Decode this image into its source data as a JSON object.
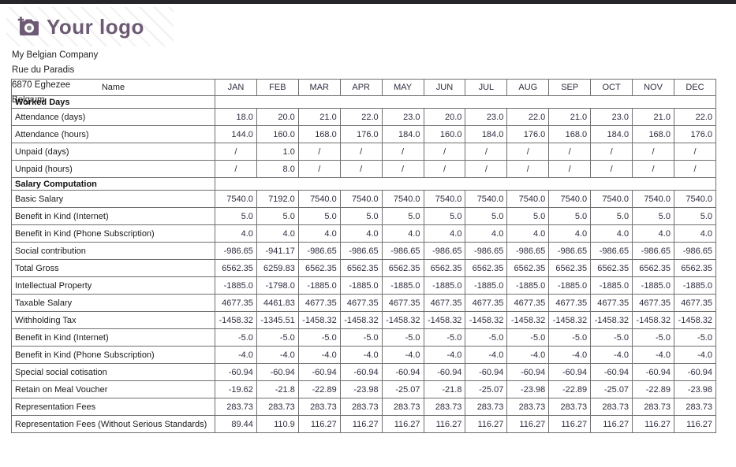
{
  "logo": {
    "text": "Your logo",
    "color": "#6d5a73"
  },
  "address": {
    "lines": [
      "My Belgian Company",
      "Rue du Paradis",
      "6870 Eghezee",
      "Belgium"
    ]
  },
  "table": {
    "name_header": "Name",
    "months": [
      "JAN",
      "FEB",
      "MAR",
      "APR",
      "MAY",
      "JUN",
      "JUL",
      "AUG",
      "SEP",
      "OCT",
      "NOV",
      "DEC"
    ],
    "sections": [
      {
        "title": "Worked Days",
        "rows": [
          {
            "label": "Attendance (days)",
            "values": [
              "18.0",
              "20.0",
              "21.0",
              "22.0",
              "23.0",
              "20.0",
              "23.0",
              "22.0",
              "21.0",
              "23.0",
              "21.0",
              "22.0"
            ]
          },
          {
            "label": "Attendance (hours)",
            "values": [
              "144.0",
              "160.0",
              "168.0",
              "176.0",
              "184.0",
              "160.0",
              "184.0",
              "176.0",
              "168.0",
              "184.0",
              "168.0",
              "176.0"
            ]
          },
          {
            "label": "Unpaid (days)",
            "values": [
              "/",
              "1.0",
              "/",
              "/",
              "/",
              "/",
              "/",
              "/",
              "/",
              "/",
              "/",
              "/"
            ]
          },
          {
            "label": "Unpaid (hours)",
            "values": [
              "/",
              "8.0",
              "/",
              "/",
              "/",
              "/",
              "/",
              "/",
              "/",
              "/",
              "/",
              "/"
            ]
          }
        ]
      },
      {
        "title": "Salary Computation",
        "rows": [
          {
            "label": "Basic Salary",
            "values": [
              "7540.0",
              "7192.0",
              "7540.0",
              "7540.0",
              "7540.0",
              "7540.0",
              "7540.0",
              "7540.0",
              "7540.0",
              "7540.0",
              "7540.0",
              "7540.0"
            ]
          },
          {
            "label": "Benefit in Kind (Internet)",
            "values": [
              "5.0",
              "5.0",
              "5.0",
              "5.0",
              "5.0",
              "5.0",
              "5.0",
              "5.0",
              "5.0",
              "5.0",
              "5.0",
              "5.0"
            ]
          },
          {
            "label": "Benefit in Kind (Phone Subscription)",
            "values": [
              "4.0",
              "4.0",
              "4.0",
              "4.0",
              "4.0",
              "4.0",
              "4.0",
              "4.0",
              "4.0",
              "4.0",
              "4.0",
              "4.0"
            ]
          },
          {
            "label": "Social contribution",
            "values": [
              "-986.65",
              "-941.17",
              "-986.65",
              "-986.65",
              "-986.65",
              "-986.65",
              "-986.65",
              "-986.65",
              "-986.65",
              "-986.65",
              "-986.65",
              "-986.65"
            ]
          },
          {
            "label": "Total Gross",
            "values": [
              "6562.35",
              "6259.83",
              "6562.35",
              "6562.35",
              "6562.35",
              "6562.35",
              "6562.35",
              "6562.35",
              "6562.35",
              "6562.35",
              "6562.35",
              "6562.35"
            ]
          },
          {
            "label": "Intellectual Property",
            "values": [
              "-1885.0",
              "-1798.0",
              "-1885.0",
              "-1885.0",
              "-1885.0",
              "-1885.0",
              "-1885.0",
              "-1885.0",
              "-1885.0",
              "-1885.0",
              "-1885.0",
              "-1885.0"
            ]
          },
          {
            "label": "Taxable Salary",
            "values": [
              "4677.35",
              "4461.83",
              "4677.35",
              "4677.35",
              "4677.35",
              "4677.35",
              "4677.35",
              "4677.35",
              "4677.35",
              "4677.35",
              "4677.35",
              "4677.35"
            ]
          },
          {
            "label": "Withholding Tax",
            "values": [
              "-1458.32",
              "-1345.51",
              "-1458.32",
              "-1458.32",
              "-1458.32",
              "-1458.32",
              "-1458.32",
              "-1458.32",
              "-1458.32",
              "-1458.32",
              "-1458.32",
              "-1458.32"
            ]
          },
          {
            "label": "Benefit in Kind (Internet)",
            "values": [
              "-5.0",
              "-5.0",
              "-5.0",
              "-5.0",
              "-5.0",
              "-5.0",
              "-5.0",
              "-5.0",
              "-5.0",
              "-5.0",
              "-5.0",
              "-5.0"
            ]
          },
          {
            "label": "Benefit in Kind (Phone Subscription)",
            "values": [
              "-4.0",
              "-4.0",
              "-4.0",
              "-4.0",
              "-4.0",
              "-4.0",
              "-4.0",
              "-4.0",
              "-4.0",
              "-4.0",
              "-4.0",
              "-4.0"
            ]
          },
          {
            "label": "Special social cotisation",
            "values": [
              "-60.94",
              "-60.94",
              "-60.94",
              "-60.94",
              "-60.94",
              "-60.94",
              "-60.94",
              "-60.94",
              "-60.94",
              "-60.94",
              "-60.94",
              "-60.94"
            ]
          },
          {
            "label": "Retain on Meal Voucher",
            "values": [
              "-19.62",
              "-21.8",
              "-22.89",
              "-23.98",
              "-25.07",
              "-21.8",
              "-25.07",
              "-23.98",
              "-22.89",
              "-25.07",
              "-22.89",
              "-23.98"
            ]
          },
          {
            "label": "Representation Fees",
            "values": [
              "283.73",
              "283.73",
              "283.73",
              "283.73",
              "283.73",
              "283.73",
              "283.73",
              "283.73",
              "283.73",
              "283.73",
              "283.73",
              "283.73"
            ]
          },
          {
            "label": "Representation Fees (Without Serious Standards)",
            "values": [
              "89.44",
              "110.9",
              "116.27",
              "116.27",
              "116.27",
              "116.27",
              "116.27",
              "116.27",
              "116.27",
              "116.27",
              "116.27",
              "116.27"
            ]
          }
        ]
      }
    ]
  }
}
